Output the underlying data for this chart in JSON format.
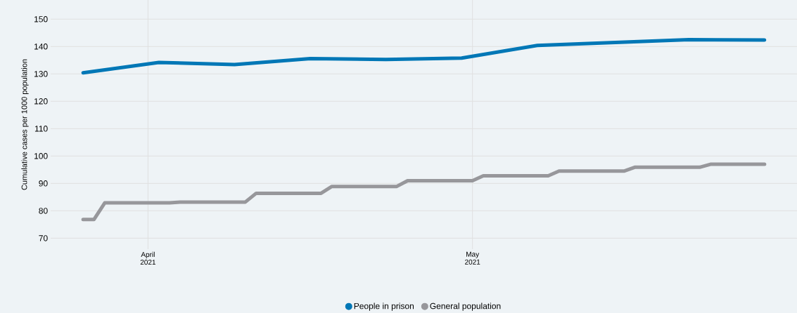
{
  "chart_data": {
    "type": "line",
    "ylabel": "Cumulative cases per 1000 population",
    "xlim": [
      "2021-03-23",
      "2021-05-31"
    ],
    "ylim": [
      66,
      157
    ],
    "xticks": [
      {
        "value": "2021-04-01",
        "label": "April 2021"
      },
      {
        "value": "2021-05-01",
        "label": "May 2021"
      }
    ],
    "yticks": [
      70,
      80,
      90,
      100,
      110,
      120,
      130,
      140,
      150
    ],
    "grid": true,
    "legend": "bottom",
    "series": [
      {
        "name": "People in prison",
        "color": "#0077b6",
        "x": [
          "2021-03-26",
          "2021-04-02",
          "2021-04-09",
          "2021-04-16",
          "2021-04-23",
          "2021-04-30",
          "2021-05-07",
          "2021-05-21",
          "2021-05-28"
        ],
        "values": [
          130.4,
          134.2,
          133.4,
          135.6,
          135.3,
          135.8,
          140.4,
          142.5,
          142.4
        ]
      },
      {
        "name": "General population",
        "color": "#97979b",
        "x": [
          "2021-03-26",
          "2021-03-27",
          "2021-03-28",
          "2021-04-03",
          "2021-04-04",
          "2021-04-10",
          "2021-04-11",
          "2021-04-17",
          "2021-04-18",
          "2021-04-24",
          "2021-04-25",
          "2021-05-01",
          "2021-05-02",
          "2021-05-08",
          "2021-05-09",
          "2021-05-15",
          "2021-05-16",
          "2021-05-22",
          "2021-05-23",
          "2021-05-28"
        ],
        "values": [
          76.8,
          76.8,
          82.9,
          82.9,
          83.2,
          83.2,
          86.4,
          86.4,
          88.9,
          88.9,
          91.0,
          91.0,
          92.8,
          92.8,
          94.5,
          94.5,
          95.9,
          95.9,
          97.0,
          97.0
        ]
      }
    ]
  }
}
